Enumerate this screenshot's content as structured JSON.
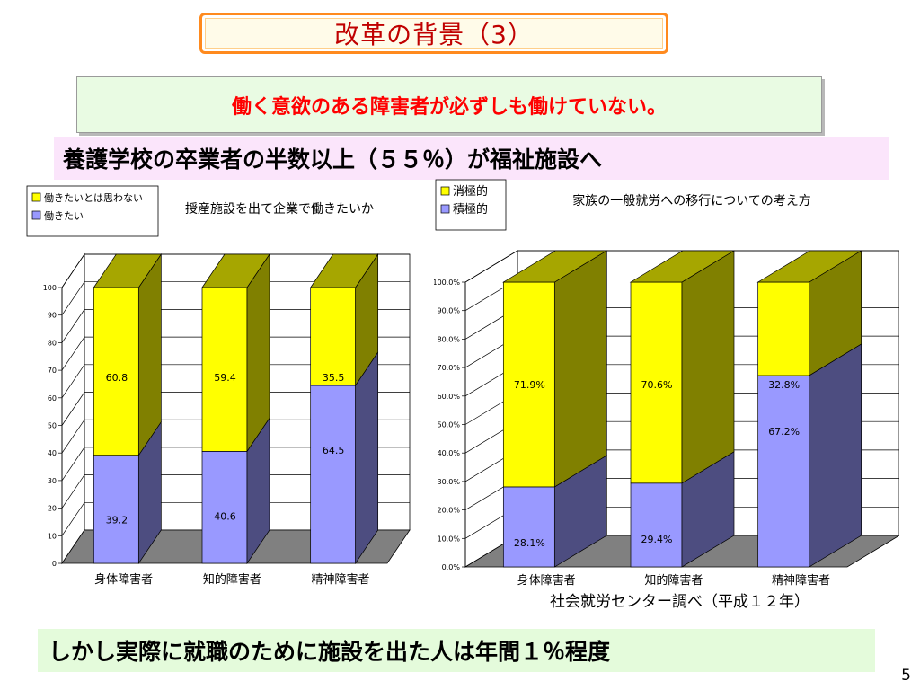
{
  "slide": {
    "title": "改革の背景（3）",
    "subtitle": "働く意欲のある障害者が必ずしも働けていない。",
    "banner": "養護学校の卒業者の半数以上（５５％）が福祉施設へ",
    "bottom_banner": "しかし実際に就職のために施設を出た人は年間１％程度",
    "source": "社会就労センター調べ（平成１２年）",
    "page_number": "5"
  },
  "colors": {
    "yellow": "#ffff00",
    "periwinkle": "#9999ff",
    "floor": "#808080",
    "title_border": "#ff8a1e",
    "subtitle_text": "#ff0000"
  },
  "chart_data": [
    {
      "type": "bar",
      "stacked": true,
      "three_d": true,
      "title": "授産施設を出て企業で働きたいか",
      "categories": [
        "身体障害者",
        "知的障害者",
        "精神障害者"
      ],
      "series": [
        {
          "name": "働きたい",
          "values": [
            39.2,
            40.6,
            64.5
          ],
          "color": "#9999ff",
          "labels": [
            "39.2",
            "40.6",
            "64.5"
          ]
        },
        {
          "name": "働きたいとは思わない",
          "values": [
            60.8,
            59.4,
            35.5
          ],
          "color": "#ffff00",
          "labels": [
            "60.8",
            "59.4",
            "35.5"
          ]
        }
      ],
      "legend": [
        "働きたいとは思わない",
        "働きたい"
      ],
      "legend_position": "top-left",
      "ylim": [
        0,
        100
      ],
      "yticks": [
        "0",
        "10",
        "20",
        "30",
        "40",
        "50",
        "60",
        "70",
        "80",
        "90",
        "100"
      ],
      "grid": true
    },
    {
      "type": "bar",
      "stacked": true,
      "three_d": true,
      "title": "家族の一般就労への移行についての考え方",
      "categories": [
        "身体障害者",
        "知的障害者",
        "精神障害者"
      ],
      "series": [
        {
          "name": "積極的",
          "values": [
            28.1,
            29.4,
            67.2
          ],
          "color": "#9999ff",
          "labels": [
            "28.1%",
            "29.4%",
            "67.2%"
          ]
        },
        {
          "name": "消極的",
          "values": [
            71.9,
            70.6,
            32.8
          ],
          "color": "#ffff00",
          "labels": [
            "71.9%",
            "70.6%",
            "32.8%"
          ]
        }
      ],
      "legend": [
        "消極的",
        "積極的"
      ],
      "legend_position": "top-left",
      "ylim": [
        0,
        100
      ],
      "yticks": [
        "0.0%",
        "10.0%",
        "20.0%",
        "30.0%",
        "40.0%",
        "50.0%",
        "60.0%",
        "70.0%",
        "80.0%",
        "90.0%",
        "100.0%"
      ],
      "grid": true
    }
  ]
}
